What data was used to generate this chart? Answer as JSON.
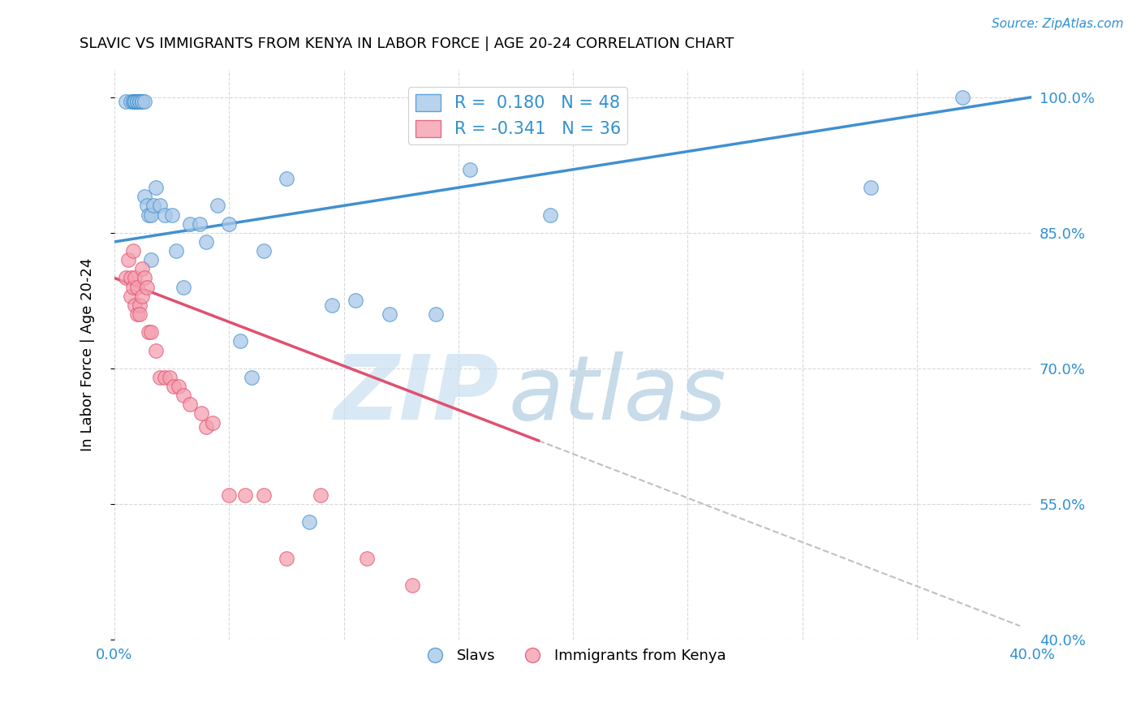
{
  "title": "SLAVIC VS IMMIGRANTS FROM KENYA IN LABOR FORCE | AGE 20-24 CORRELATION CHART",
  "source": "Source: ZipAtlas.com",
  "ylabel": "In Labor Force | Age 20-24",
  "xlim": [
    0.0,
    0.4
  ],
  "ylim": [
    0.4,
    1.03
  ],
  "ytick_vals": [
    0.4,
    0.55,
    0.7,
    0.85,
    1.0
  ],
  "ytick_labels": [
    "40.0%",
    "55.0%",
    "70.0%",
    "85.0%",
    "100.0%"
  ],
  "xtick_vals": [
    0.0,
    0.05,
    0.1,
    0.15,
    0.2,
    0.25,
    0.3,
    0.35,
    0.4
  ],
  "xtick_labels": [
    "0.0%",
    "",
    "",
    "",
    "",
    "",
    "",
    "",
    "40.0%"
  ],
  "blue_color": "#a8c8e8",
  "pink_color": "#f4a0b0",
  "blue_line_color": "#4090d0",
  "pink_line_color": "#e05070",
  "dashed_line_color": "#c0c0c0",
  "legend_R_blue": "0.180",
  "legend_N_blue": "48",
  "legend_R_pink": "-0.341",
  "legend_N_pink": "36",
  "blue_scatter_x": [
    0.005,
    0.007,
    0.008,
    0.008,
    0.009,
    0.009,
    0.009,
    0.01,
    0.01,
    0.01,
    0.01,
    0.011,
    0.011,
    0.011,
    0.012,
    0.012,
    0.012,
    0.013,
    0.013,
    0.014,
    0.015,
    0.016,
    0.016,
    0.017,
    0.018,
    0.02,
    0.022,
    0.025,
    0.027,
    0.03,
    0.033,
    0.037,
    0.04,
    0.045,
    0.05,
    0.055,
    0.06,
    0.065,
    0.075,
    0.085,
    0.095,
    0.105,
    0.12,
    0.14,
    0.155,
    0.19,
    0.33,
    0.37
  ],
  "blue_scatter_y": [
    0.995,
    0.995,
    0.995,
    0.995,
    0.995,
    0.995,
    0.995,
    0.995,
    0.995,
    0.995,
    0.995,
    0.995,
    0.995,
    0.995,
    0.995,
    0.995,
    0.995,
    0.995,
    0.89,
    0.88,
    0.87,
    0.87,
    0.82,
    0.88,
    0.9,
    0.88,
    0.87,
    0.87,
    0.83,
    0.79,
    0.86,
    0.86,
    0.84,
    0.88,
    0.86,
    0.73,
    0.69,
    0.83,
    0.91,
    0.53,
    0.77,
    0.775,
    0.76,
    0.76,
    0.92,
    0.87,
    0.9,
    1.0
  ],
  "pink_scatter_x": [
    0.005,
    0.006,
    0.007,
    0.007,
    0.008,
    0.008,
    0.009,
    0.009,
    0.01,
    0.01,
    0.011,
    0.011,
    0.012,
    0.012,
    0.013,
    0.014,
    0.015,
    0.016,
    0.018,
    0.02,
    0.022,
    0.024,
    0.026,
    0.028,
    0.03,
    0.033,
    0.038,
    0.04,
    0.043,
    0.05,
    0.057,
    0.065,
    0.075,
    0.09,
    0.11,
    0.13
  ],
  "pink_scatter_y": [
    0.8,
    0.82,
    0.8,
    0.78,
    0.83,
    0.79,
    0.8,
    0.77,
    0.79,
    0.76,
    0.77,
    0.76,
    0.78,
    0.81,
    0.8,
    0.79,
    0.74,
    0.74,
    0.72,
    0.69,
    0.69,
    0.69,
    0.68,
    0.68,
    0.67,
    0.66,
    0.65,
    0.635,
    0.64,
    0.56,
    0.56,
    0.56,
    0.49,
    0.56,
    0.49,
    0.46
  ],
  "blue_line_x0": 0.0,
  "blue_line_x1": 0.4,
  "blue_line_y0": 0.84,
  "blue_line_y1": 1.0,
  "pink_line_x0": 0.0,
  "pink_line_x1": 0.185,
  "pink_line_y0": 0.8,
  "pink_line_y1": 0.62,
  "dashed_line_x0": 0.185,
  "dashed_line_x1": 0.395,
  "dashed_line_y0": 0.62,
  "dashed_line_y1": 0.415,
  "watermark_zip_color": "#c8dff0",
  "watermark_atlas_color": "#b0cce0",
  "background_color": "#ffffff",
  "grid_color": "#d8d8d8"
}
